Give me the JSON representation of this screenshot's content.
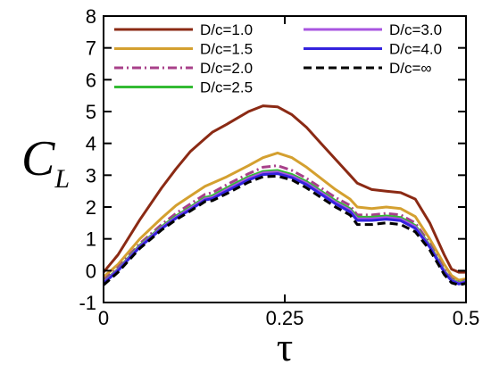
{
  "chart_data": {
    "type": "line",
    "xlabel": "τ",
    "ylabel_main": "C",
    "ylabel_sub": "L",
    "xlim": [
      0,
      0.5
    ],
    "ylim": [
      -1,
      8
    ],
    "xticks": [
      "0",
      "0.25",
      "0.5"
    ],
    "xtick_values": [
      0,
      0.25,
      0.5
    ],
    "yticks": [
      "-1",
      "0",
      "1",
      "2",
      "3",
      "4",
      "5",
      "6",
      "7",
      "8"
    ],
    "ytick_values": [
      -1,
      0,
      1,
      2,
      3,
      4,
      5,
      6,
      7,
      8
    ],
    "grid": false,
    "legend_position": "top",
    "series": [
      {
        "name": "D/c=1.0",
        "color": "#8B2A14",
        "dash": "solid",
        "x": [
          0,
          0.02,
          0.05,
          0.08,
          0.1,
          0.12,
          0.14,
          0.15,
          0.17,
          0.2,
          0.22,
          0.24,
          0.26,
          0.28,
          0.3,
          0.32,
          0.34,
          0.35,
          0.37,
          0.39,
          0.41,
          0.43,
          0.45,
          0.47,
          0.48,
          0.49,
          0.5
        ],
        "y": [
          -0.05,
          0.5,
          1.6,
          2.6,
          3.2,
          3.75,
          4.15,
          4.35,
          4.6,
          5.0,
          5.18,
          5.15,
          4.9,
          4.5,
          4.0,
          3.5,
          3.0,
          2.75,
          2.55,
          2.5,
          2.45,
          2.25,
          1.5,
          0.5,
          0.05,
          -0.05,
          -0.05
        ]
      },
      {
        "name": "D/c=1.5",
        "color": "#D4A030",
        "dash": "solid",
        "x": [
          0,
          0.02,
          0.05,
          0.08,
          0.1,
          0.12,
          0.14,
          0.15,
          0.17,
          0.2,
          0.22,
          0.24,
          0.26,
          0.28,
          0.3,
          0.32,
          0.34,
          0.35,
          0.37,
          0.39,
          0.41,
          0.43,
          0.45,
          0.47,
          0.48,
          0.49,
          0.5
        ],
        "y": [
          -0.2,
          0.2,
          1.0,
          1.65,
          2.05,
          2.35,
          2.65,
          2.75,
          2.95,
          3.3,
          3.55,
          3.7,
          3.55,
          3.25,
          2.9,
          2.55,
          2.25,
          2.0,
          1.95,
          2.0,
          1.95,
          1.7,
          1.0,
          0.2,
          -0.15,
          -0.3,
          -0.25
        ]
      },
      {
        "name": "D/c=2.0",
        "color": "#A8408A",
        "dash": "dashdot",
        "x": [
          0,
          0.02,
          0.05,
          0.08,
          0.1,
          0.12,
          0.14,
          0.15,
          0.17,
          0.2,
          0.22,
          0.24,
          0.26,
          0.28,
          0.3,
          0.32,
          0.34,
          0.35,
          0.37,
          0.39,
          0.41,
          0.43,
          0.45,
          0.47,
          0.48,
          0.49,
          0.5
        ],
        "y": [
          -0.3,
          0.1,
          0.85,
          1.45,
          1.8,
          2.1,
          2.4,
          2.45,
          2.7,
          3.05,
          3.25,
          3.3,
          3.15,
          2.9,
          2.6,
          2.3,
          2.05,
          1.75,
          1.75,
          1.8,
          1.75,
          1.5,
          0.85,
          0.05,
          -0.25,
          -0.35,
          -0.3
        ]
      },
      {
        "name": "D/c=2.5",
        "color": "#33BB33",
        "dash": "solid",
        "x": [
          0,
          0.02,
          0.05,
          0.08,
          0.1,
          0.12,
          0.14,
          0.15,
          0.17,
          0.2,
          0.22,
          0.24,
          0.26,
          0.28,
          0.3,
          0.32,
          0.34,
          0.35,
          0.37,
          0.39,
          0.41,
          0.43,
          0.45,
          0.47,
          0.48,
          0.49,
          0.5
        ],
        "y": [
          -0.35,
          0.05,
          0.8,
          1.38,
          1.72,
          2.0,
          2.3,
          2.35,
          2.6,
          2.95,
          3.12,
          3.15,
          3.02,
          2.8,
          2.5,
          2.2,
          1.95,
          1.68,
          1.68,
          1.72,
          1.67,
          1.42,
          0.8,
          0.0,
          -0.28,
          -0.38,
          -0.32
        ]
      },
      {
        "name": "D/c=3.0",
        "color": "#A855E0",
        "dash": "solid",
        "x": [
          0,
          0.02,
          0.05,
          0.08,
          0.1,
          0.12,
          0.14,
          0.15,
          0.17,
          0.2,
          0.22,
          0.24,
          0.26,
          0.28,
          0.3,
          0.32,
          0.34,
          0.35,
          0.37,
          0.39,
          0.41,
          0.43,
          0.45,
          0.47,
          0.48,
          0.49,
          0.5
        ],
        "y": [
          -0.37,
          0.03,
          0.77,
          1.35,
          1.68,
          1.96,
          2.26,
          2.3,
          2.55,
          2.9,
          3.07,
          3.1,
          2.97,
          2.75,
          2.45,
          2.15,
          1.9,
          1.63,
          1.63,
          1.67,
          1.62,
          1.38,
          0.77,
          -0.02,
          -0.3,
          -0.4,
          -0.34
        ]
      },
      {
        "name": "D/c=4.0",
        "color": "#3322DD",
        "dash": "solid",
        "x": [
          0,
          0.02,
          0.05,
          0.08,
          0.1,
          0.12,
          0.14,
          0.15,
          0.17,
          0.2,
          0.22,
          0.24,
          0.26,
          0.28,
          0.3,
          0.32,
          0.34,
          0.35,
          0.37,
          0.39,
          0.41,
          0.43,
          0.45,
          0.47,
          0.48,
          0.49,
          0.5
        ],
        "y": [
          -0.4,
          0.0,
          0.74,
          1.32,
          1.65,
          1.92,
          2.22,
          2.26,
          2.5,
          2.85,
          3.02,
          3.05,
          2.92,
          2.7,
          2.4,
          2.1,
          1.85,
          1.58,
          1.58,
          1.62,
          1.57,
          1.33,
          0.74,
          -0.05,
          -0.32,
          -0.42,
          -0.36
        ]
      },
      {
        "name": "D/c=∞",
        "color": "#000000",
        "dash": "dashed",
        "x": [
          0,
          0.02,
          0.05,
          0.08,
          0.1,
          0.12,
          0.14,
          0.15,
          0.17,
          0.2,
          0.22,
          0.24,
          0.26,
          0.28,
          0.3,
          0.32,
          0.34,
          0.35,
          0.37,
          0.39,
          0.41,
          0.43,
          0.45,
          0.47,
          0.48,
          0.49,
          0.5
        ],
        "y": [
          -0.45,
          -0.05,
          0.7,
          1.28,
          1.6,
          1.88,
          2.17,
          2.2,
          2.42,
          2.78,
          2.95,
          2.97,
          2.85,
          2.6,
          2.3,
          2.0,
          1.75,
          1.45,
          1.45,
          1.5,
          1.45,
          1.22,
          0.65,
          -0.12,
          -0.38,
          -0.45,
          -0.4
        ]
      }
    ]
  }
}
